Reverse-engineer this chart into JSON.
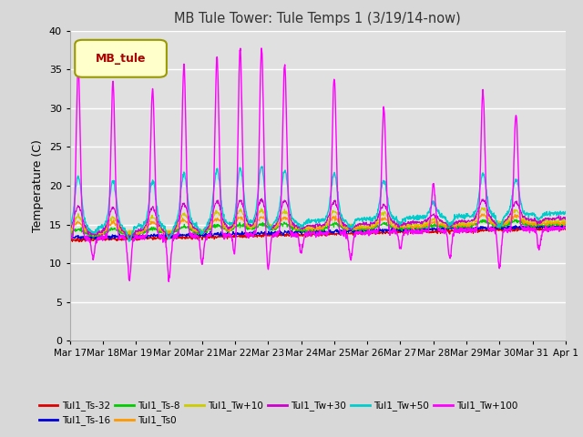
{
  "title": "MB Tule Tower: Tule Temps 1 (3/19/14-now)",
  "ylabel": "Temperature (C)",
  "ylim": [
    0,
    40
  ],
  "yticks": [
    0,
    5,
    10,
    15,
    20,
    25,
    30,
    35,
    40
  ],
  "xlabels": [
    "Mar 17",
    "Mar 18",
    "Mar 19",
    "Mar 20",
    "Mar 21",
    "Mar 22",
    "Mar 23",
    "Mar 24",
    "Mar 25",
    "Mar 26",
    "Mar 27",
    "Mar 28",
    "Mar 29",
    "Mar 30",
    "Mar 31",
    "Apr 1"
  ],
  "background_color": "#d8d8d8",
  "plot_bg_color": "#e0e0e0",
  "legend_box_color": "#ffffcc",
  "legend_box_edge": "#999900",
  "legend_label": "MB_tule",
  "series": [
    {
      "name": "Tul1_Ts-32",
      "color": "#dd0000"
    },
    {
      "name": "Tul1_Ts-16",
      "color": "#0000dd"
    },
    {
      "name": "Tul1_Ts-8",
      "color": "#00cc00"
    },
    {
      "name": "Tul1_Ts0",
      "color": "#ff9900"
    },
    {
      "name": "Tul1_Tw+10",
      "color": "#cccc00"
    },
    {
      "name": "Tul1_Tw+30",
      "color": "#cc00cc"
    },
    {
      "name": "Tul1_Tw+50",
      "color": "#00cccc"
    },
    {
      "name": "Tul1_Tw+100",
      "color": "#ff00ff"
    }
  ],
  "num_days": 15,
  "points_per_day": 96
}
